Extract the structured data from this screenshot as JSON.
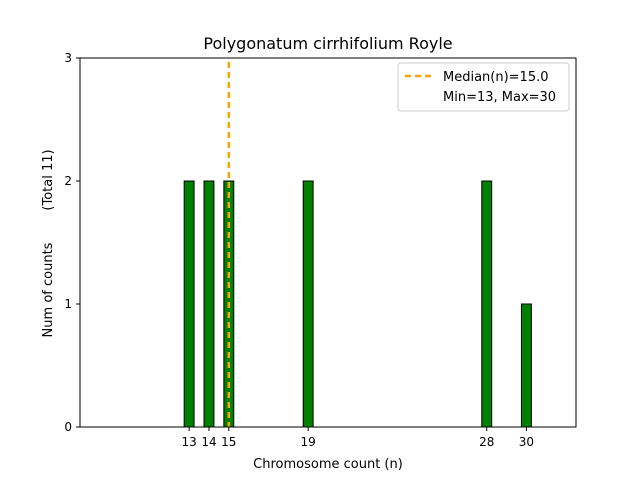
{
  "chart_data": {
    "type": "bar",
    "title": "Polygonatum cirrhifolium Royle",
    "xlabel": "Chromosome count (n)",
    "ylabel": "Num of counts",
    "ylabel_note": "(Total 11)",
    "categories": [
      13,
      14,
      15,
      19,
      28,
      30
    ],
    "x": [
      13,
      14,
      15,
      19,
      28,
      30
    ],
    "values": [
      2,
      2,
      2,
      2,
      2,
      1
    ],
    "bar_color": "#008000",
    "bar_edge_color": "#000000",
    "xlim": [
      7.5,
      32.5
    ],
    "ylim": [
      0,
      3
    ],
    "x_ticks": [
      13,
      14,
      15,
      19,
      28,
      30
    ],
    "y_ticks": [
      0,
      1,
      2,
      3
    ],
    "median": 15.0,
    "median_color": "#FFA500",
    "legend": {
      "position": "top-right",
      "entries": [
        "Median(n)=15.0",
        "Min=13, Max=30"
      ]
    },
    "grid": false
  }
}
